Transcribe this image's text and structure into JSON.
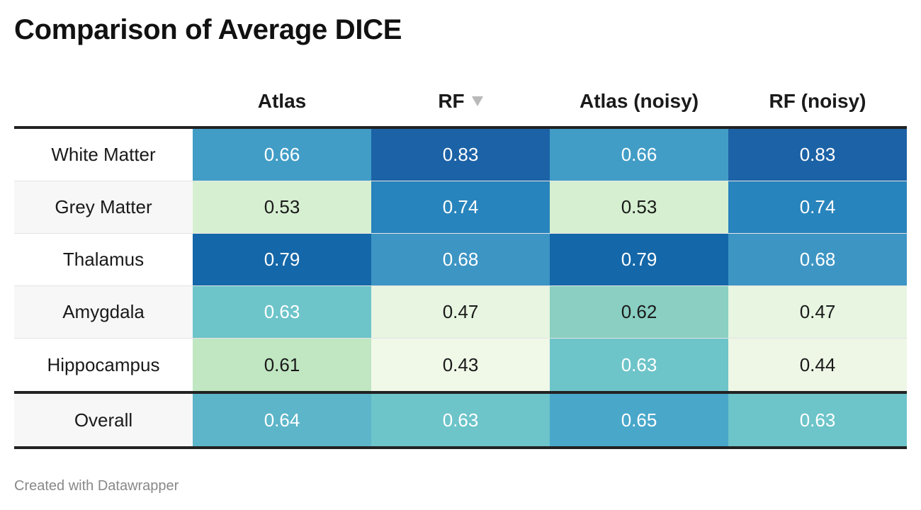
{
  "title": "Comparison of Average DICE",
  "footer": "Created with Datawrapper",
  "chart_data": {
    "type": "table",
    "title": "Comparison of Average DICE",
    "columns": [
      "Atlas",
      "RF",
      "Atlas (noisy)",
      "RF (noisy)"
    ],
    "sorted_column": "RF",
    "sort_direction": "descending",
    "rows": [
      {
        "label": "White Matter",
        "values": [
          "0.66",
          "0.83",
          "0.66",
          "0.83"
        ],
        "colors": [
          "#419dc6",
          "#1c62a6",
          "#419dc6",
          "#1c62a6"
        ]
      },
      {
        "label": "Grey Matter",
        "values": [
          "0.53",
          "0.74",
          "0.53",
          "0.74"
        ],
        "colors": [
          "#d6efd1",
          "#2884bc",
          "#d6efd1",
          "#2884bc"
        ]
      },
      {
        "label": "Thalamus",
        "values": [
          "0.79",
          "0.68",
          "0.79",
          "0.68"
        ],
        "colors": [
          "#1467a8",
          "#3d95c4",
          "#1467a8",
          "#3d95c4"
        ]
      },
      {
        "label": "Amygdala",
        "values": [
          "0.63",
          "0.47",
          "0.62",
          "0.47"
        ],
        "colors": [
          "#6dc4c9",
          "#e7f5e1",
          "#8acfc2",
          "#e7f5e1"
        ]
      },
      {
        "label": "Hippocampus",
        "values": [
          "0.61",
          "0.43",
          "0.63",
          "0.44"
        ],
        "colors": [
          "#c0e6c2",
          "#f0f8e8",
          "#6dc4c9",
          "#eef7e6"
        ]
      }
    ],
    "summary_row": {
      "label": "Overall",
      "values": [
        "0.64",
        "0.63",
        "0.65",
        "0.63"
      ],
      "colors": [
        "#5cb5c9",
        "#6dc4c9",
        "#49a7ca",
        "#6dc4c9"
      ]
    }
  }
}
